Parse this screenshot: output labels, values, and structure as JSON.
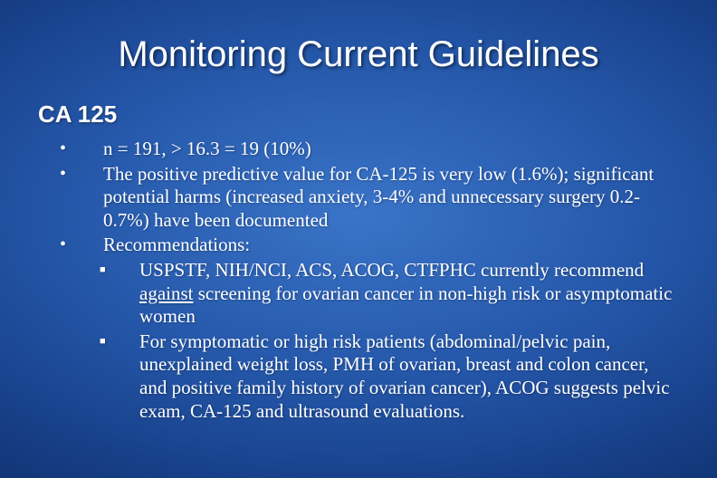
{
  "background": {
    "center_color": "#3a74c8",
    "mid_color": "#2456a8",
    "outer_color": "#0d2c63",
    "edge_color": "#081f4a"
  },
  "text_color": "#ffffff",
  "title": {
    "text": "Monitoring Current Guidelines",
    "font_family": "Arial",
    "font_size_pt": 40
  },
  "subtitle": {
    "text": "CA 125",
    "font_family": "Verdana",
    "font_size_pt": 26,
    "font_weight": "bold"
  },
  "body_font_family": "Times New Roman",
  "body_font_size_pt": 21,
  "bullets": [
    {
      "level": 1,
      "marker": "•",
      "text": "n = 191, > 16.3 = 19 (10%)"
    },
    {
      "level": 1,
      "marker": "•",
      "text": "The positive predictive value for CA-125 is very low (1.6%); significant potential harms (increased anxiety, 3-4% and unnecessary surgery 0.2-0.7%) have been documented"
    },
    {
      "level": 1,
      "marker": "•",
      "text": "Recommendations:"
    },
    {
      "level": 2,
      "marker": "■",
      "text_pre": "USPSTF, NIH/NCI, ACS, ACOG, CTFPHC currently recommend ",
      "text_underline": "against",
      "text_post": " screening for ovarian cancer in non-high risk or asymptomatic women"
    },
    {
      "level": 2,
      "marker": "■",
      "text": "For symptomatic or high risk patients (abdominal/pelvic pain, unexplained weight loss, PMH of ovarian, breast and colon cancer, and positive family history of ovarian cancer), ACOG suggests pelvic exam, CA-125 and ultrasound evaluations."
    }
  ]
}
